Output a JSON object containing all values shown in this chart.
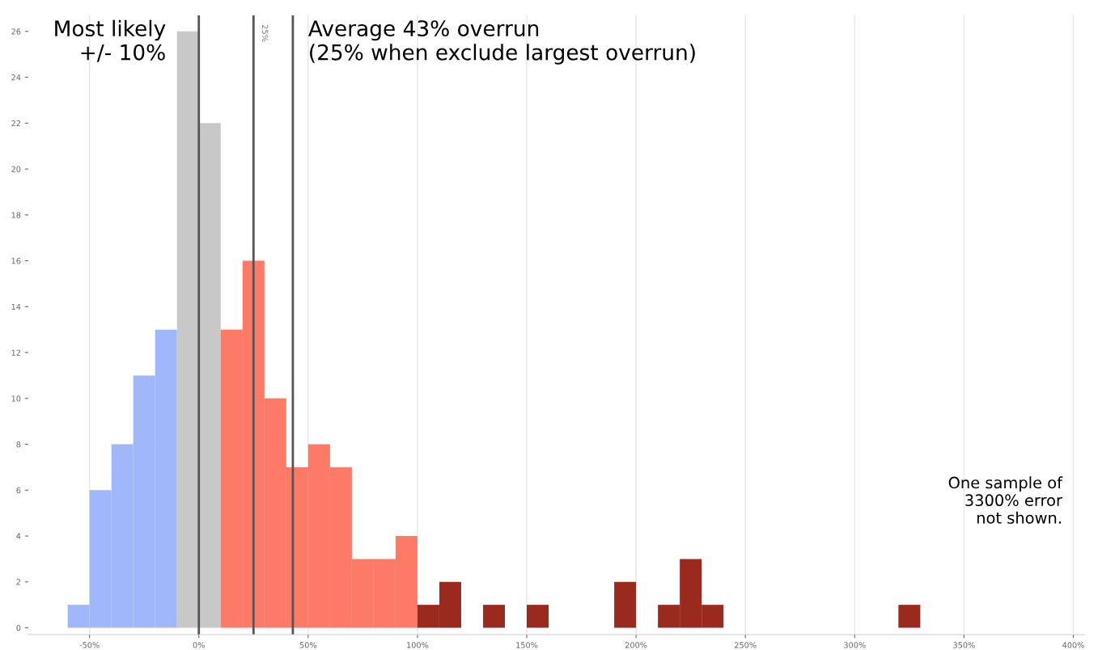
{
  "chart_data": {
    "type": "histogram",
    "bins": [
      -60,
      -50,
      -40,
      -30,
      -20,
      -10,
      0,
      10,
      20,
      30,
      40,
      50,
      60,
      70,
      80,
      90,
      100,
      110,
      120,
      130,
      140,
      150,
      160,
      170,
      180,
      190,
      200,
      210,
      220,
      230,
      240,
      250,
      260,
      270,
      280,
      290,
      300,
      310,
      320,
      330
    ],
    "values": [
      1,
      6,
      8,
      11,
      13,
      26,
      22,
      13,
      16,
      10,
      7,
      8,
      7,
      3,
      3,
      4,
      1,
      2,
      0,
      1,
      0,
      1,
      0,
      0,
      0,
      2,
      0,
      1,
      3,
      1,
      0,
      0,
      0,
      0,
      0,
      0,
      0,
      0,
      1
    ],
    "colors": [
      "#a0b8fb",
      "#a0b8fb",
      "#a0b8fb",
      "#a0b8fb",
      "#a0b8fb",
      "#c8c8c8",
      "#c8c8c8",
      "#fc7a66",
      "#fc7a66",
      "#fc7a66",
      "#fc7a66",
      "#fc7a66",
      "#fc7a66",
      "#fc7a66",
      "#fc7a66",
      "#fc7a66",
      "#9b2a1e",
      "#9b2a1e",
      "#9b2a1e",
      "#9b2a1e",
      "#9b2a1e",
      "#9b2a1e",
      "#9b2a1e",
      "#9b2a1e",
      "#9b2a1e",
      "#9b2a1e",
      "#9b2a1e",
      "#9b2a1e",
      "#9b2a1e",
      "#9b2a1e",
      "#9b2a1e",
      "#9b2a1e",
      "#9b2a1e",
      "#9b2a1e",
      "#9b2a1e",
      "#9b2a1e",
      "#9b2a1e",
      "#9b2a1e",
      "#9b2a1e"
    ],
    "xlim": [
      -78,
      405
    ],
    "ylim": [
      -0.3,
      26.7
    ],
    "xticks": [
      {
        "value": -50,
        "label": "-50%"
      },
      {
        "value": 0,
        "label": "0%"
      },
      {
        "value": 50,
        "label": "50%"
      },
      {
        "value": 100,
        "label": "100%"
      },
      {
        "value": 150,
        "label": "150%"
      },
      {
        "value": 200,
        "label": "200%"
      },
      {
        "value": 250,
        "label": "250%"
      },
      {
        "value": 300,
        "label": "300%"
      },
      {
        "value": 350,
        "label": "350%"
      },
      {
        "value": 400,
        "label": "400%"
      }
    ],
    "yticks": [
      0,
      2,
      4,
      6,
      8,
      10,
      12,
      14,
      16,
      18,
      20,
      22,
      24,
      26
    ],
    "grid": "x",
    "ref_lines": [
      {
        "axis": "x",
        "value": 0,
        "color": "#555555"
      },
      {
        "axis": "x",
        "value": 25,
        "label": "25%",
        "color": "#555555"
      },
      {
        "axis": "x",
        "value": 43,
        "label": "Average 43% overrun\n(25% when exclude largest overrun)",
        "color": "#555555"
      }
    ],
    "annotations": [
      "Most likely\n+/- 10%",
      "One sample of\n3300% error\nnot shown."
    ]
  }
}
